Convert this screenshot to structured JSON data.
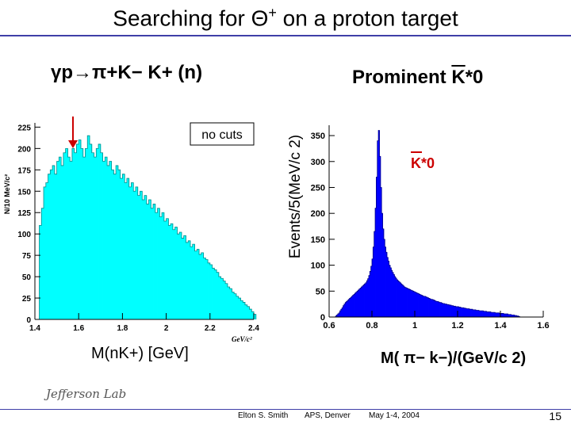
{
  "title": "Searching for Θ+ on a proton target",
  "reaction": "γp→π+K− K+ (n)",
  "prominent": {
    "prefix": "Prominent ",
    "particle": "K",
    "suffix": "*0"
  },
  "colors": {
    "hist_left": "#00ffff",
    "hist_right": "#0000ff",
    "rule": "#3f3fa8",
    "arrow": "#cc0000"
  },
  "chart_data": [
    {
      "type": "bar",
      "title": "no cuts",
      "xlabel": "M(nK+) [GeV]",
      "ylabel": "N/10 MeV/c²",
      "x_unit_label": "GeV/c²",
      "xlim": [
        1.4,
        2.4
      ],
      "ylim": [
        0,
        230
      ],
      "x_ticks": [
        "1.4",
        "1.6",
        "1.8",
        "2",
        "2.2",
        "2.4"
      ],
      "y_ticks": [
        "0",
        "25",
        "50",
        "75",
        "100",
        "125",
        "150",
        "175",
        "200",
        "225"
      ],
      "bin_width": 0.01,
      "x_start": 1.42,
      "values": [
        110,
        130,
        155,
        160,
        170,
        175,
        180,
        170,
        185,
        190,
        180,
        195,
        200,
        190,
        185,
        200,
        195,
        205,
        210,
        200,
        190,
        200,
        215,
        205,
        195,
        190,
        200,
        205,
        195,
        185,
        190,
        180,
        185,
        175,
        170,
        180,
        175,
        165,
        170,
        160,
        165,
        155,
        160,
        150,
        155,
        145,
        150,
        140,
        145,
        135,
        140,
        130,
        135,
        125,
        130,
        120,
        125,
        115,
        118,
        110,
        112,
        105,
        108,
        100,
        102,
        95,
        98,
        90,
        92,
        85,
        88,
        80,
        82,
        76,
        78,
        72,
        70,
        66,
        64,
        60,
        58,
        55,
        50,
        48,
        45,
        42,
        38,
        36,
        32,
        30,
        27,
        25,
        22,
        20,
        17,
        15,
        12,
        9,
        6
      ]
    },
    {
      "type": "bar",
      "title": "K*0",
      "xlabel": "M(π− k−)/(GeV/c 2)",
      "ylabel": "Events/5(MeV/c 2)",
      "xlim": [
        0.6,
        1.6
      ],
      "ylim": [
        0,
        370
      ],
      "x_ticks": [
        "0.6",
        "0.8",
        "1",
        "1.2",
        "1.4",
        "1.6"
      ],
      "y_ticks": [
        "0",
        "50",
        "100",
        "150",
        "200",
        "250",
        "300",
        "350"
      ],
      "bin_width": 0.005,
      "x_start": 0.63,
      "values": [
        2,
        4,
        6,
        8,
        12,
        15,
        18,
        22,
        25,
        28,
        30,
        32,
        34,
        36,
        38,
        40,
        42,
        44,
        46,
        48,
        50,
        52,
        54,
        56,
        58,
        60,
        62,
        64,
        66,
        70,
        74,
        80,
        88,
        98,
        112,
        135,
        165,
        210,
        270,
        340,
        360,
        310,
        250,
        200,
        170,
        150,
        135,
        125,
        115,
        108,
        100,
        95,
        90,
        86,
        82,
        78,
        75,
        72,
        70,
        68,
        66,
        64,
        62,
        60,
        58,
        57,
        56,
        55,
        54,
        53,
        52,
        51,
        50,
        49,
        48,
        47,
        46,
        45,
        44,
        43,
        42,
        41,
        40,
        40,
        39,
        38,
        37,
        36,
        35,
        34,
        34,
        33,
        32,
        31,
        30,
        30,
        29,
        28,
        28,
        27,
        26,
        26,
        25,
        25,
        24,
        24,
        23,
        23,
        22,
        22,
        21,
        21,
        20,
        20,
        20,
        19,
        19,
        18,
        18,
        18,
        17,
        17,
        16,
        16,
        16,
        15,
        15,
        15,
        14,
        14,
        14,
        13,
        13,
        13,
        12,
        12,
        12,
        12,
        11,
        11,
        11,
        10,
        10,
        10,
        10,
        9,
        9,
        9,
        9,
        8,
        8,
        8,
        8,
        7,
        7,
        7,
        7,
        6,
        6,
        6,
        6,
        5,
        5,
        5,
        4,
        4,
        4,
        3,
        3,
        2,
        2,
        1
      ]
    }
  ],
  "left_xlabel": "M(nK+) [GeV]",
  "right_xlabel": "M( π− k−)/(GeV/c 2)",
  "right_ylabel": "Events/5(MeV/c 2)",
  "left_ylabel": "N/10 MeV/c²",
  "left_unit": "GeV/c²",
  "no_cuts": "no cuts",
  "kstar_label": "K*0",
  "footer": {
    "author": "Elton S. Smith",
    "venue": "APS, Denver",
    "date": "May 1-4, 2004",
    "page": "15",
    "logo_text": "Jefferson Lab"
  }
}
